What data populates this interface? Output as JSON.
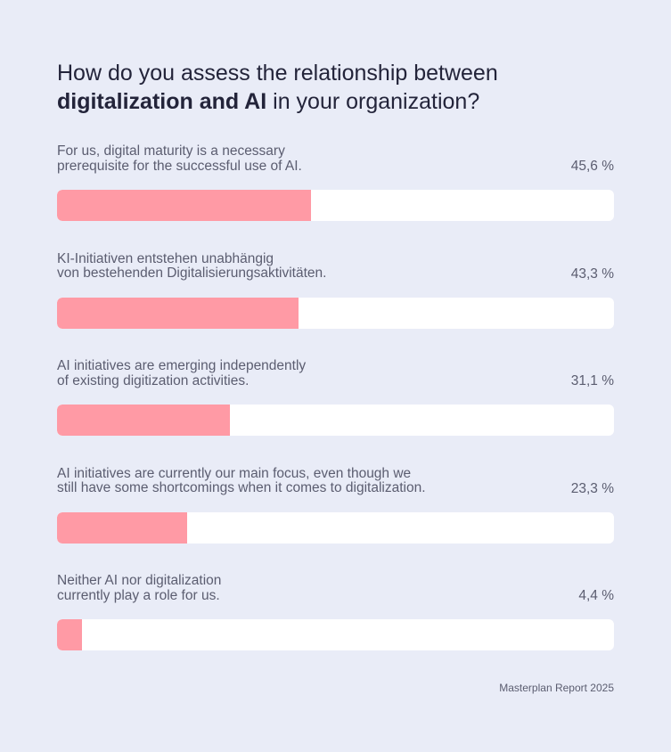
{
  "title": {
    "part1": "How do you assess the relationship between",
    "bold": "digitalization and AI",
    "part2": " in your organization?"
  },
  "source": "Masterplan Report 2025",
  "chart_data": {
    "type": "bar",
    "orientation": "horizontal",
    "title": "How do you assess the relationship between digitalization and AI in your organization?",
    "categories": [
      "For us, digital maturity is a necessary prerequisite for the successful use of AI.",
      "KI-Initiativen entstehen unabhängig von bestehenden Digitalisierungsaktivitäten.",
      "AI initiatives are emerging independently of existing digitization activities.",
      "AI initiatives are currently our main focus, even though we still have some shortcomings when it comes to digitalization.",
      "Neither AI nor digitalization currently play a role for us."
    ],
    "values": [
      45.6,
      43.3,
      31.1,
      23.3,
      4.4
    ],
    "xlim": [
      0,
      100
    ],
    "unit": "%",
    "bar_color": "#ff9aa5",
    "track_color": "#ffffff",
    "items": [
      {
        "line1": "For us, digital maturity is a necessary",
        "line2": "prerequisite for the successful use of AI.",
        "value_label": "45,6 %",
        "value": 45.6
      },
      {
        "line1": "KI-Initiativen entstehen unabhängig",
        "line2": "von bestehenden Digitalisierungsaktivitäten.",
        "value_label": "43,3 %",
        "value": 43.3
      },
      {
        "line1": "AI initiatives are emerging independently",
        "line2": "of existing digitization activities.",
        "value_label": "31,1 %",
        "value": 31.1
      },
      {
        "line1": "AI initiatives are currently our main focus, even though we",
        "line2": "still have some shortcomings when it comes to digitalization.",
        "value_label": "23,3 %",
        "value": 23.3
      },
      {
        "line1": "Neither AI nor digitalization",
        "line2": "currently play a role for us.",
        "value_label": "4,4 %",
        "value": 4.4
      }
    ]
  }
}
